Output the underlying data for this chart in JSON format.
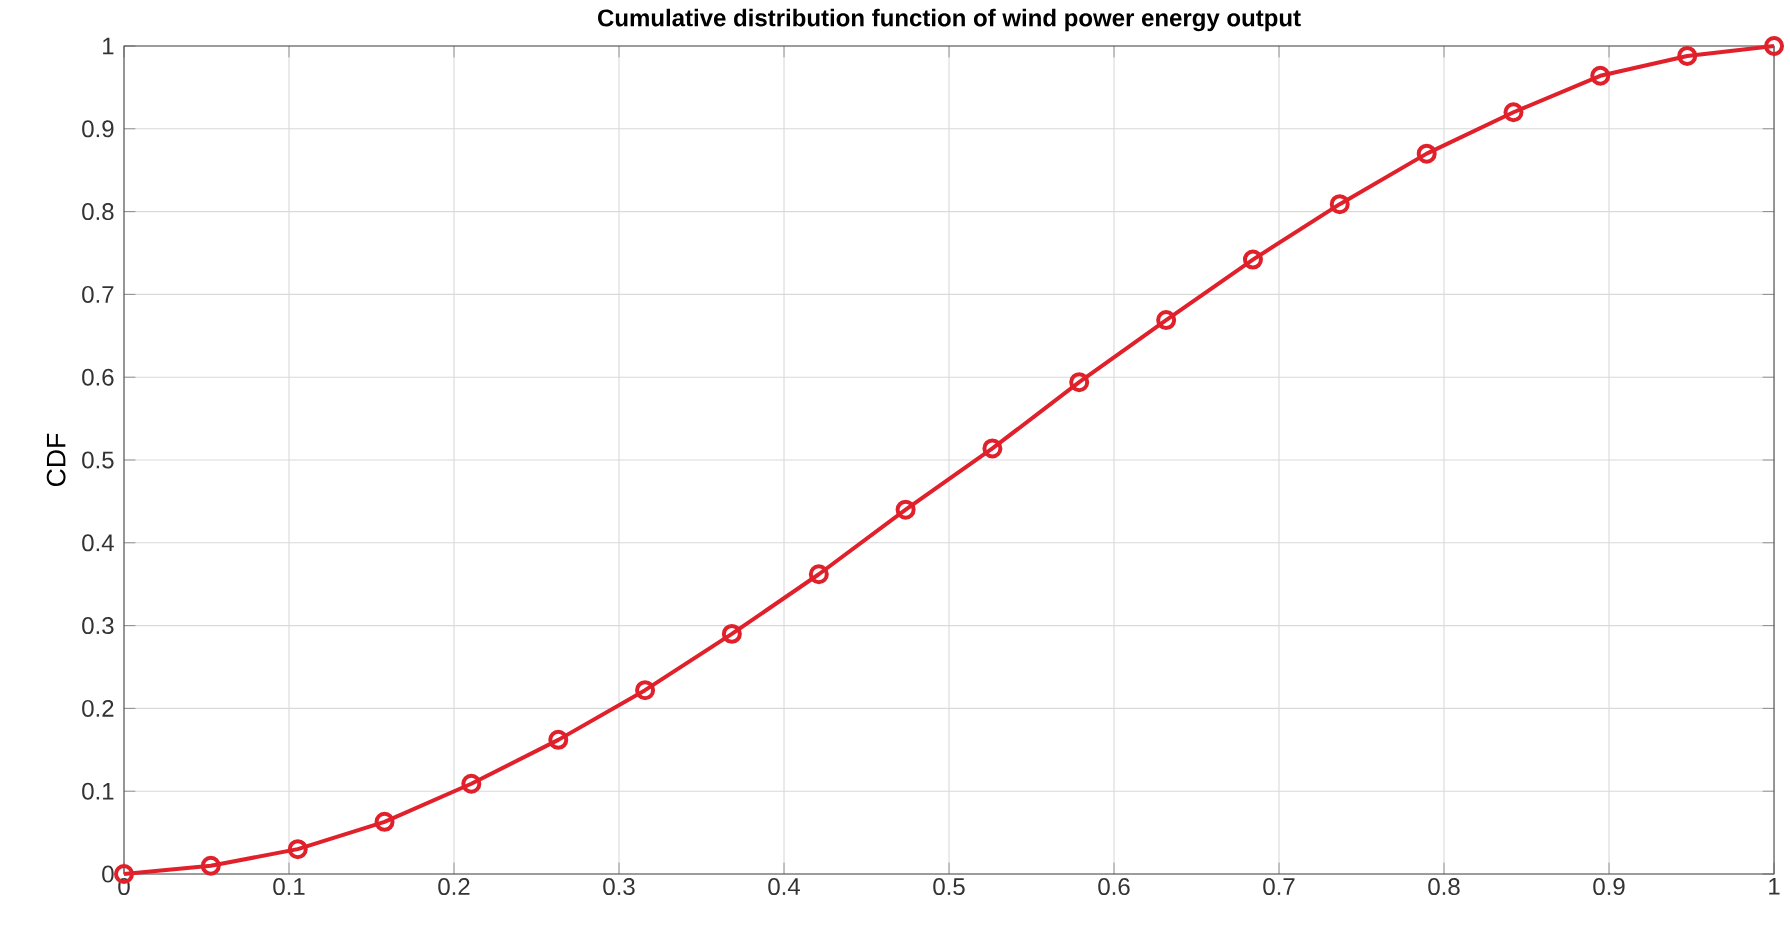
{
  "chart_data": {
    "type": "line",
    "title": "Cumulative distribution function of wind power energy output",
    "ylabel": "CDF",
    "x": [
      0,
      0.0526,
      0.1053,
      0.1579,
      0.2105,
      0.2632,
      0.3158,
      0.3684,
      0.4211,
      0.4737,
      0.5263,
      0.5789,
      0.6316,
      0.6842,
      0.7368,
      0.7895,
      0.8421,
      0.8947,
      0.9474,
      1
    ],
    "series": [
      {
        "color": "#e0202a",
        "values": [
          0,
          0.01,
          0.03,
          0.063,
          0.109,
          0.162,
          0.222,
          0.29,
          0.362,
          0.44,
          0.514,
          0.594,
          0.669,
          0.742,
          0.809,
          0.87,
          0.92,
          0.964,
          0.988,
          1.0
        ]
      }
    ],
    "xlim": [
      0,
      1
    ],
    "ylim": [
      0,
      1
    ],
    "xticks": [
      0,
      0.1,
      0.2,
      0.3,
      0.4,
      0.5,
      0.6,
      0.7,
      0.8,
      0.9,
      1
    ],
    "yticks": [
      0,
      0.1,
      0.2,
      0.3,
      0.4,
      0.5,
      0.6,
      0.7,
      0.8,
      0.9,
      1
    ],
    "grid": true,
    "marker": "circle",
    "line_style": "solid"
  }
}
